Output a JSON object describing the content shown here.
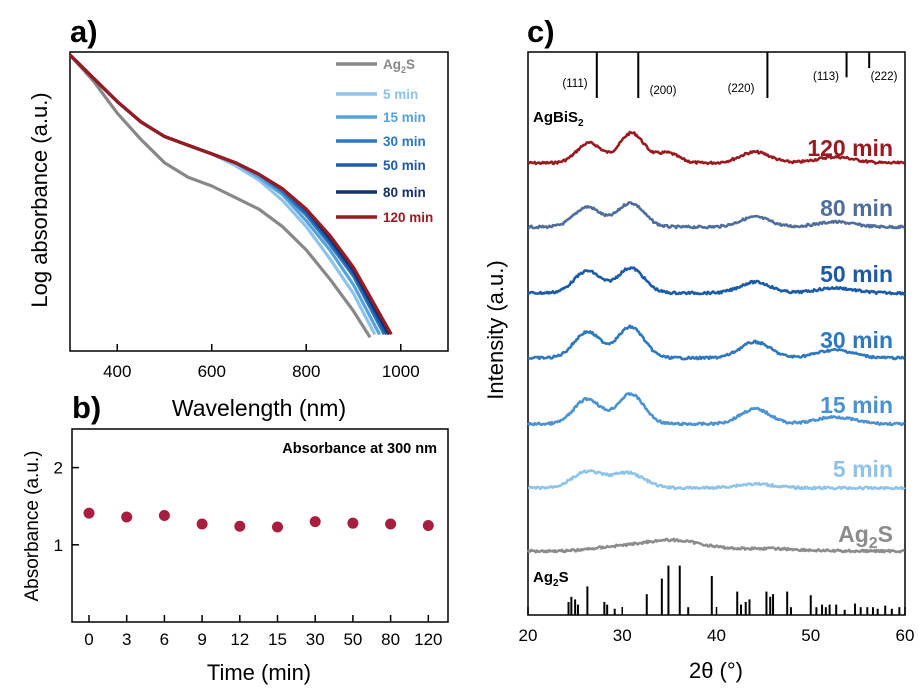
{
  "panels": {
    "a": {
      "label": "a)"
    },
    "b": {
      "label": "b)"
    },
    "c": {
      "label": "c)"
    }
  },
  "chart_data": [
    {
      "panel": "a",
      "type": "line",
      "xlabel": "Wavelength (nm)",
      "ylabel": "Log absorbance (a.u.)",
      "xlim": [
        300,
        1100
      ],
      "xticks": [
        400,
        600,
        800,
        1000
      ],
      "y_scale": "log, arbitrary units, no tick labels",
      "legend_position": "top-right",
      "series": [
        {
          "name": "Ag2S",
          "color": "#888888",
          "points": [
            [
              300,
              0.0
            ],
            [
              350,
              0.09
            ],
            [
              400,
              0.2
            ],
            [
              450,
              0.29
            ],
            [
              500,
              0.37
            ],
            [
              550,
              0.42
            ],
            [
              600,
              0.45
            ],
            [
              650,
              0.49
            ],
            [
              700,
              0.53
            ],
            [
              750,
              0.59
            ],
            [
              800,
              0.67
            ],
            [
              850,
              0.77
            ],
            [
              900,
              0.88
            ],
            [
              935,
              0.97
            ]
          ]
        },
        {
          "name": "5 min",
          "color": "#8ec3ea",
          "points": [
            [
              300,
              0.0
            ],
            [
              350,
              0.08
            ],
            [
              400,
              0.16
            ],
            [
              450,
              0.23
            ],
            [
              500,
              0.28
            ],
            [
              550,
              0.31
            ],
            [
              600,
              0.34
            ],
            [
              650,
              0.38
            ],
            [
              700,
              0.43
            ],
            [
              750,
              0.5
            ],
            [
              800,
              0.59
            ],
            [
              850,
              0.7
            ],
            [
              900,
              0.82
            ],
            [
              945,
              0.96
            ]
          ]
        },
        {
          "name": "15 min",
          "color": "#56a2dc",
          "points": [
            [
              300,
              0.0
            ],
            [
              350,
              0.08
            ],
            [
              400,
              0.16
            ],
            [
              450,
              0.23
            ],
            [
              500,
              0.28
            ],
            [
              550,
              0.31
            ],
            [
              600,
              0.34
            ],
            [
              650,
              0.37
            ],
            [
              700,
              0.42
            ],
            [
              750,
              0.48
            ],
            [
              800,
              0.57
            ],
            [
              850,
              0.67
            ],
            [
              900,
              0.79
            ],
            [
              955,
              0.96
            ]
          ]
        },
        {
          "name": "30 min",
          "color": "#2d78c0",
          "points": [
            [
              300,
              0.0
            ],
            [
              350,
              0.08
            ],
            [
              400,
              0.16
            ],
            [
              450,
              0.23
            ],
            [
              500,
              0.28
            ],
            [
              550,
              0.31
            ],
            [
              600,
              0.34
            ],
            [
              650,
              0.37
            ],
            [
              700,
              0.41
            ],
            [
              750,
              0.47
            ],
            [
              800,
              0.55
            ],
            [
              850,
              0.65
            ],
            [
              900,
              0.76
            ],
            [
              965,
              0.96
            ]
          ]
        },
        {
          "name": "50 min",
          "color": "#1c5ba8",
          "points": [
            [
              300,
              0.0
            ],
            [
              350,
              0.08
            ],
            [
              400,
              0.16
            ],
            [
              450,
              0.23
            ],
            [
              500,
              0.28
            ],
            [
              550,
              0.31
            ],
            [
              600,
              0.34
            ],
            [
              650,
              0.37
            ],
            [
              700,
              0.41
            ],
            [
              750,
              0.46
            ],
            [
              800,
              0.54
            ],
            [
              850,
              0.64
            ],
            [
              900,
              0.75
            ],
            [
              970,
              0.96
            ]
          ]
        },
        {
          "name": "80 min",
          "color": "#15306e",
          "points": [
            [
              300,
              0.0
            ],
            [
              350,
              0.08
            ],
            [
              400,
              0.16
            ],
            [
              450,
              0.23
            ],
            [
              500,
              0.28
            ],
            [
              550,
              0.31
            ],
            [
              600,
              0.34
            ],
            [
              650,
              0.37
            ],
            [
              700,
              0.41
            ],
            [
              750,
              0.46
            ],
            [
              800,
              0.53
            ],
            [
              850,
              0.63
            ],
            [
              900,
              0.74
            ],
            [
              975,
              0.96
            ]
          ]
        },
        {
          "name": "120 min",
          "color": "#9b1a1f",
          "points": [
            [
              300,
              0.0
            ],
            [
              350,
              0.08
            ],
            [
              400,
              0.16
            ],
            [
              450,
              0.23
            ],
            [
              500,
              0.28
            ],
            [
              550,
              0.31
            ],
            [
              600,
              0.34
            ],
            [
              650,
              0.37
            ],
            [
              700,
              0.41
            ],
            [
              750,
              0.46
            ],
            [
              800,
              0.53
            ],
            [
              850,
              0.62
            ],
            [
              900,
              0.73
            ],
            [
              980,
              0.96
            ]
          ]
        }
      ]
    },
    {
      "panel": "b",
      "type": "scatter",
      "title": "Absorbance at 300 nm",
      "xlabel": "Time (min)",
      "ylabel": "Absorbance (a.u.)",
      "categories": [
        "0",
        "3",
        "6",
        "9",
        "12",
        "15",
        "30",
        "50",
        "80",
        "120"
      ],
      "values": [
        1.41,
        1.36,
        1.38,
        1.27,
        1.24,
        1.23,
        1.3,
        1.28,
        1.27,
        1.25
      ],
      "ylim": [
        0,
        2.5
      ],
      "yticks": [
        1,
        2
      ],
      "color": "#a81e3f"
    },
    {
      "panel": "c",
      "type": "line",
      "xlabel": "2θ (°)",
      "ylabel": "Intensity (a.u.)",
      "xlim": [
        20,
        60
      ],
      "xticks": [
        20,
        30,
        40,
        50,
        60
      ],
      "reference_top": {
        "name": "AgBiS2",
        "peaks": [
          {
            "pos": 27.3,
            "height": 1.0,
            "label": "(111)"
          },
          {
            "pos": 31.7,
            "height": 1.0,
            "label": "(200)"
          },
          {
            "pos": 45.4,
            "height": 1.0,
            "label": "(220)"
          },
          {
            "pos": 53.8,
            "height": 0.55,
            "label": "(113)"
          },
          {
            "pos": 56.2,
            "height": 0.35,
            "label": "(222)"
          }
        ]
      },
      "series": [
        {
          "name": "120 min",
          "color": "#9b1a1f",
          "peaks": [
            [
              26.5,
              1.0,
              1.3
            ],
            [
              31.0,
              1.5,
              1.3
            ],
            [
              34.8,
              0.5,
              1.2
            ],
            [
              44.1,
              0.55,
              1.6
            ],
            [
              52.6,
              0.3,
              2.0
            ]
          ]
        },
        {
          "name": "80 min",
          "color": "#4f6e9c",
          "peaks": [
            [
              26.3,
              1.0,
              1.4
            ],
            [
              30.9,
              1.2,
              1.4
            ],
            [
              44.1,
              0.5,
              1.6
            ],
            [
              52.6,
              0.25,
              2.0
            ]
          ]
        },
        {
          "name": "50 min",
          "color": "#1c5ba8",
          "peaks": [
            [
              26.3,
              1.1,
              1.4
            ],
            [
              30.9,
              1.25,
              1.4
            ],
            [
              44.1,
              0.55,
              1.6
            ],
            [
              52.6,
              0.25,
              2.0
            ]
          ]
        },
        {
          "name": "30 min",
          "color": "#2d78c0",
          "peaks": [
            [
              26.3,
              1.3,
              1.4
            ],
            [
              30.9,
              1.55,
              1.4
            ],
            [
              44.1,
              0.8,
              1.6
            ],
            [
              52.6,
              0.4,
              2.0
            ]
          ]
        },
        {
          "name": "15 min",
          "color": "#4a93d2",
          "peaks": [
            [
              26.3,
              1.25,
              1.4
            ],
            [
              30.9,
              1.5,
              1.4
            ],
            [
              44.1,
              0.75,
              1.6
            ],
            [
              52.6,
              0.35,
              2.0
            ]
          ]
        },
        {
          "name": "5 min",
          "color": "#8ec3ea",
          "peaks": [
            [
              26.3,
              0.8,
              1.6
            ],
            [
              30.6,
              0.75,
              1.7
            ],
            [
              44.1,
              0.2,
              2.0
            ]
          ]
        },
        {
          "name": "Ag2S",
          "color": "#8c8c8c",
          "peaks": [
            [
              35.0,
              0.55,
              3.5
            ],
            [
              28.5,
              0.12,
              2.0
            ],
            [
              45.5,
              0.12,
              3.0
            ]
          ]
        }
      ],
      "reference_bottom": {
        "name": "Ag2S",
        "peaks": [
          [
            24.3,
            0.25
          ],
          [
            24.6,
            0.35
          ],
          [
            25.0,
            0.3
          ],
          [
            25.3,
            0.2
          ],
          [
            26.3,
            0.55
          ],
          [
            28.1,
            0.25
          ],
          [
            28.4,
            0.2
          ],
          [
            29.2,
            0.12
          ],
          [
            32.6,
            0.4
          ],
          [
            34.2,
            0.7
          ],
          [
            34.9,
            0.95
          ],
          [
            36.1,
            0.95
          ],
          [
            37.0,
            0.15
          ],
          [
            39.5,
            0.75
          ],
          [
            42.2,
            0.45
          ],
          [
            42.6,
            0.2
          ],
          [
            43.1,
            0.25
          ],
          [
            43.5,
            0.3
          ],
          [
            45.3,
            0.45
          ],
          [
            45.7,
            0.35
          ],
          [
            46.0,
            0.4
          ],
          [
            47.5,
            0.45
          ],
          [
            47.9,
            0.15
          ],
          [
            50.0,
            0.38
          ],
          [
            50.6,
            0.15
          ],
          [
            51.2,
            0.2
          ],
          [
            51.6,
            0.15
          ],
          [
            52.0,
            0.2
          ],
          [
            52.7,
            0.2
          ],
          [
            53.6,
            0.1
          ],
          [
            54.7,
            0.22
          ],
          [
            55.3,
            0.15
          ],
          [
            56.0,
            0.15
          ],
          [
            56.6,
            0.15
          ],
          [
            57.1,
            0.12
          ],
          [
            57.9,
            0.18
          ],
          [
            58.6,
            0.12
          ],
          [
            59.4,
            0.15
          ]
        ]
      }
    }
  ]
}
